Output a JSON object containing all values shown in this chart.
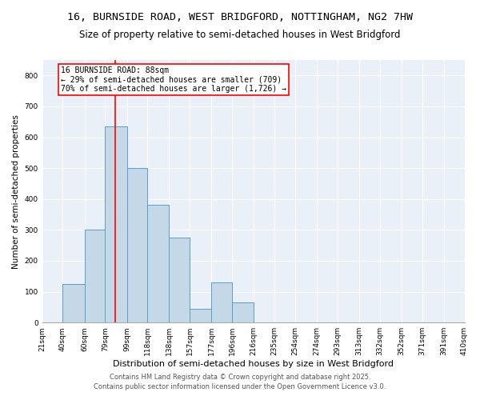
{
  "title1": "16, BURNSIDE ROAD, WEST BRIDGFORD, NOTTINGHAM, NG2 7HW",
  "title2": "Size of property relative to semi-detached houses in West Bridgford",
  "xlabel": "Distribution of semi-detached houses by size in West Bridgford",
  "ylabel": "Number of semi-detached properties",
  "bin_labels": [
    "21sqm",
    "40sqm",
    "60sqm",
    "79sqm",
    "99sqm",
    "118sqm",
    "138sqm",
    "157sqm",
    "177sqm",
    "196sqm",
    "216sqm",
    "235sqm",
    "254sqm",
    "274sqm",
    "293sqm",
    "313sqm",
    "332sqm",
    "352sqm",
    "371sqm",
    "391sqm",
    "410sqm"
  ],
  "bin_edges": [
    21,
    40,
    60,
    79,
    99,
    118,
    138,
    157,
    177,
    196,
    216,
    235,
    254,
    274,
    293,
    313,
    332,
    352,
    371,
    391,
    410
  ],
  "bar_values": [
    0,
    125,
    300,
    635,
    500,
    380,
    275,
    45,
    130,
    65,
    0,
    0,
    0,
    0,
    0,
    0,
    0,
    0,
    0,
    0
  ],
  "bar_color": "#c5d8e8",
  "bar_edge_color": "#5a9ec9",
  "property_size": 88,
  "vline_color": "red",
  "annotation_text": "16 BURNSIDE ROAD: 88sqm\n← 29% of semi-detached houses are smaller (709)\n70% of semi-detached houses are larger (1,726) →",
  "annotation_box_color": "white",
  "annotation_box_edge_color": "red",
  "ylim": [
    0,
    850
  ],
  "yticks": [
    0,
    100,
    200,
    300,
    400,
    500,
    600,
    700,
    800
  ],
  "footnote1": "Contains HM Land Registry data © Crown copyright and database right 2025.",
  "footnote2": "Contains public sector information licensed under the Open Government Licence v3.0.",
  "bg_color": "#eaf0f8",
  "grid_color": "white",
  "title1_fontsize": 9.5,
  "title2_fontsize": 8.5,
  "xlabel_fontsize": 8,
  "ylabel_fontsize": 7.5,
  "tick_fontsize": 6.5,
  "annotation_fontsize": 7,
  "footnote_fontsize": 6
}
